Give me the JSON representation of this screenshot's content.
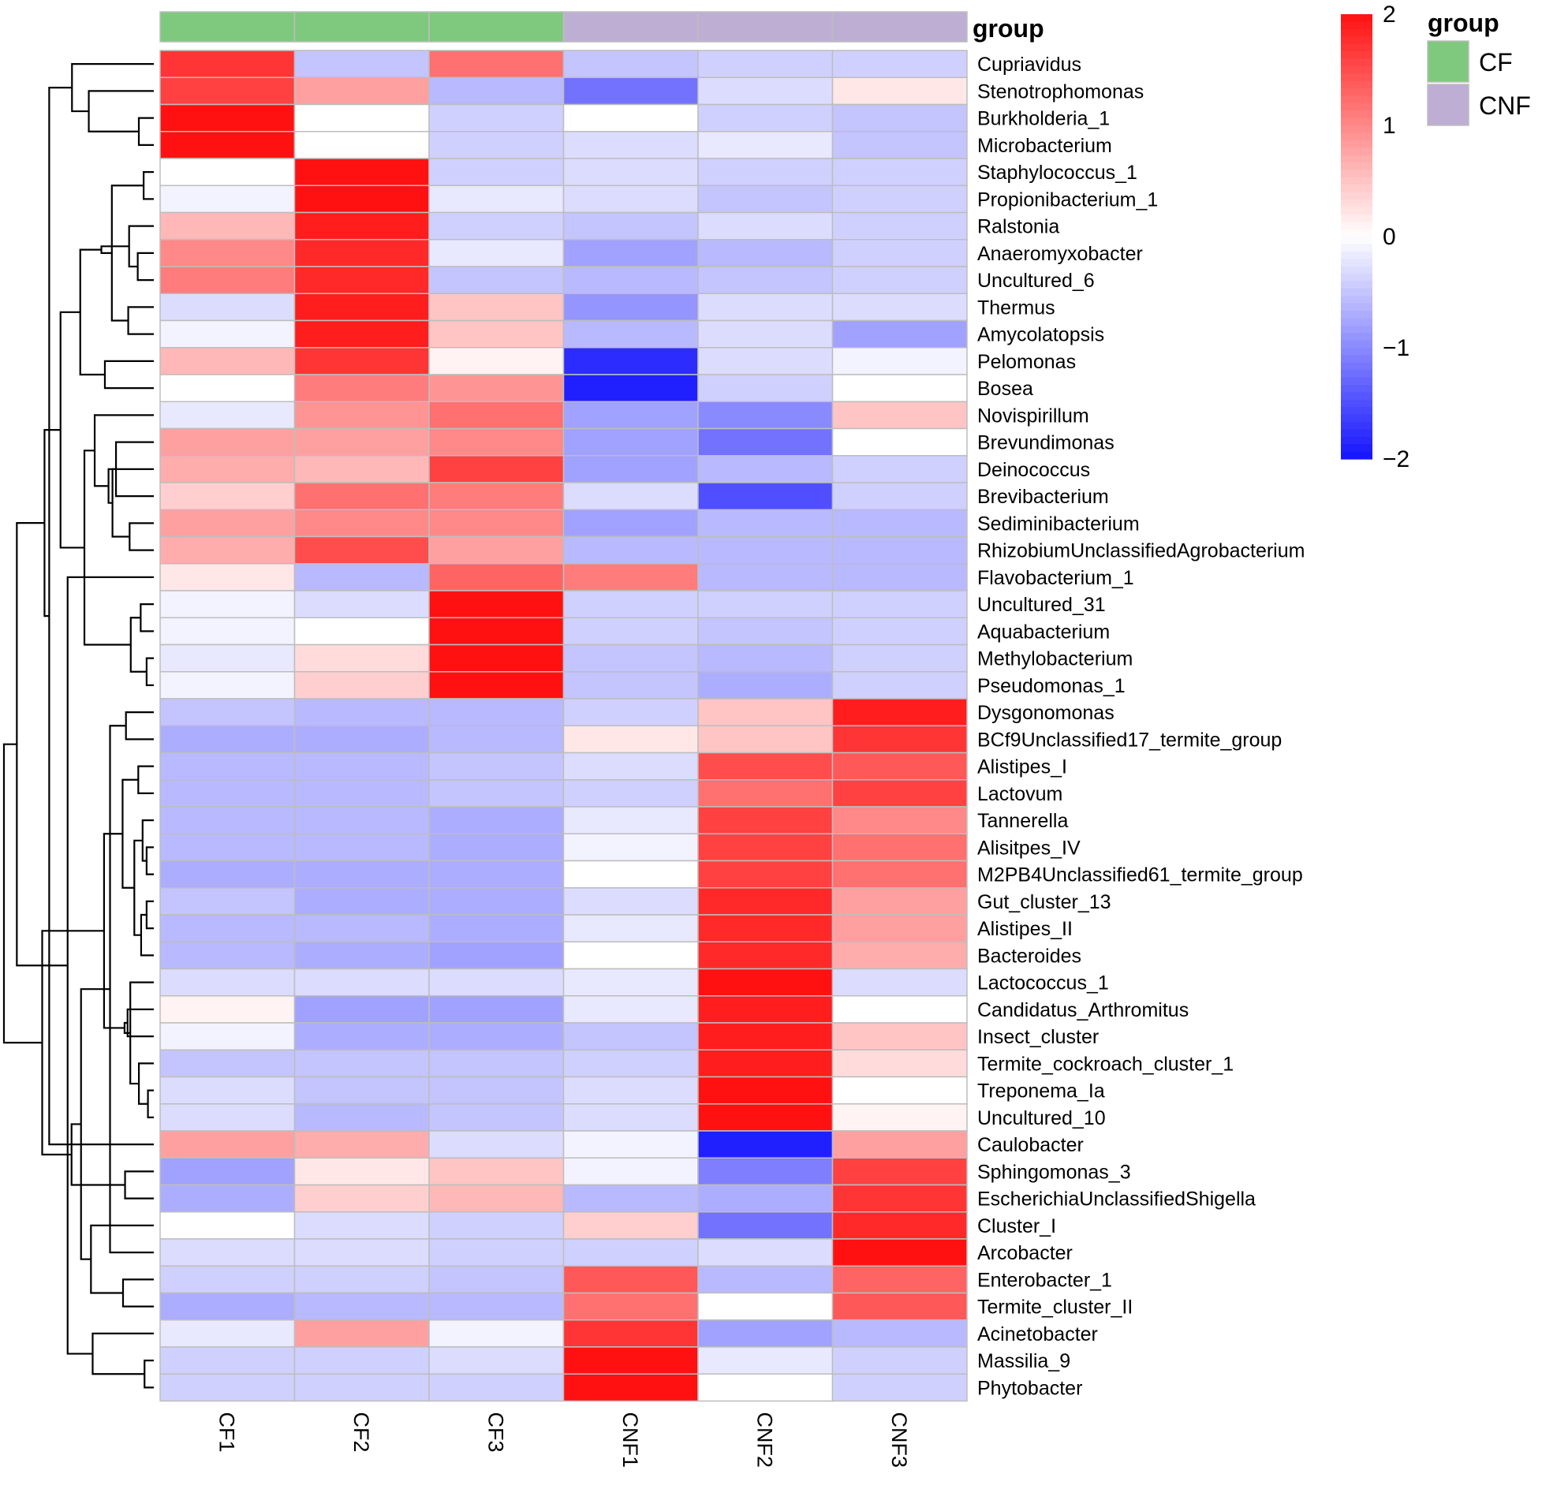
{
  "chart_data": {
    "type": "heatmap",
    "title": "",
    "columns": [
      "CF1",
      "CF2",
      "CF3",
      "CNF1",
      "CNF2",
      "CNF3"
    ],
    "column_groups": [
      "CF",
      "CF",
      "CF",
      "CNF",
      "CNF",
      "CNF"
    ],
    "rows": [
      "Cupriavidus",
      "Stenotrophomonas",
      "Burkholderia_1",
      "Microbacterium",
      "Staphylococcus_1",
      "Propionibacterium_1",
      "Ralstonia",
      "Anaeromyxobacter",
      "Uncultured_6",
      "Thermus",
      "Amycolatopsis",
      "Pelomonas",
      "Bosea",
      "Novispirillum",
      "Brevundimonas",
      "Deinococcus",
      "Brevibacterium",
      "Sediminibacterium",
      "RhizobiumUnclassifiedAgrobacterium",
      "Flavobacterium_1",
      "Uncultured_31",
      "Aquabacterium",
      "Methylobacterium",
      "Pseudomonas_1",
      "Dysgonomonas",
      "BCf9Unclassified17_termite_group",
      "Alistipes_I",
      "Lactovum",
      "Tannerella",
      "Alisitpes_IV",
      "M2PB4Unclassified61_termite_group",
      "Gut_cluster_13",
      "Alistipes_II",
      "Bacteroides",
      "Lactococcus_1",
      "Candidatus_Arthromitus",
      "Insect_cluster",
      "Termite_cockroach_cluster_1",
      "Treponema_Ia",
      "Uncultured_10",
      "Caulobacter",
      "Sphingomonas_3",
      "EscherichiaUnclassifiedShigella",
      "Cluster_I",
      "Arcobacter",
      "Enterobacter_1",
      "Termite_cluster_II",
      "Acinetobacter",
      "Massilia_9",
      "Phytobacter"
    ],
    "values": [
      [
        1.7,
        -0.5,
        1.2,
        -0.5,
        -0.4,
        -0.4
      ],
      [
        1.6,
        0.8,
        -0.6,
        -1.2,
        -0.3,
        0.2
      ],
      [
        2.0,
        0.0,
        -0.4,
        0.0,
        -0.4,
        -0.5
      ],
      [
        2.0,
        0.0,
        -0.4,
        -0.3,
        -0.2,
        -0.5
      ],
      [
        0.0,
        2.0,
        -0.4,
        -0.3,
        -0.4,
        -0.4
      ],
      [
        -0.1,
        2.0,
        -0.2,
        -0.3,
        -0.5,
        -0.4
      ],
      [
        0.6,
        1.9,
        -0.4,
        -0.5,
        -0.3,
        -0.4
      ],
      [
        1.0,
        1.8,
        -0.2,
        -0.8,
        -0.6,
        -0.4
      ],
      [
        1.1,
        1.8,
        -0.5,
        -0.6,
        -0.5,
        -0.4
      ],
      [
        -0.3,
        1.9,
        0.5,
        -0.9,
        -0.3,
        -0.3
      ],
      [
        -0.1,
        1.9,
        0.5,
        -0.6,
        -0.3,
        -0.8
      ],
      [
        0.6,
        1.7,
        0.1,
        -1.8,
        -0.3,
        -0.1
      ],
      [
        0.0,
        1.1,
        0.9,
        -1.9,
        -0.4,
        0.0
      ],
      [
        -0.2,
        0.9,
        1.2,
        -0.8,
        -1.0,
        0.5
      ],
      [
        0.8,
        0.8,
        1.0,
        -0.8,
        -1.2,
        0.0
      ],
      [
        0.7,
        0.6,
        1.6,
        -0.8,
        -0.6,
        -0.4
      ],
      [
        0.4,
        1.2,
        1.1,
        -0.3,
        -1.5,
        -0.4
      ],
      [
        0.8,
        1.0,
        1.0,
        -0.8,
        -0.6,
        -0.6
      ],
      [
        0.7,
        1.5,
        0.8,
        -0.6,
        -0.6,
        -0.6
      ],
      [
        0.2,
        -0.6,
        1.3,
        1.1,
        -0.6,
        -0.6
      ],
      [
        -0.1,
        -0.3,
        2.0,
        -0.4,
        -0.4,
        -0.4
      ],
      [
        -0.1,
        0.0,
        2.0,
        -0.4,
        -0.5,
        -0.4
      ],
      [
        -0.2,
        0.3,
        2.0,
        -0.5,
        -0.6,
        -0.4
      ],
      [
        -0.1,
        0.4,
        2.0,
        -0.5,
        -0.7,
        -0.4
      ],
      [
        -0.5,
        -0.6,
        -0.6,
        -0.4,
        0.5,
        1.9
      ],
      [
        -0.7,
        -0.7,
        -0.6,
        0.2,
        0.5,
        1.7
      ],
      [
        -0.6,
        -0.6,
        -0.5,
        -0.3,
        1.5,
        1.4
      ],
      [
        -0.6,
        -0.6,
        -0.5,
        -0.4,
        1.2,
        1.6
      ],
      [
        -0.6,
        -0.6,
        -0.7,
        -0.2,
        1.6,
        1.0
      ],
      [
        -0.6,
        -0.6,
        -0.7,
        -0.1,
        1.6,
        1.2
      ],
      [
        -0.7,
        -0.7,
        -0.7,
        0.0,
        1.6,
        1.2
      ],
      [
        -0.5,
        -0.7,
        -0.7,
        -0.3,
        1.8,
        0.8
      ],
      [
        -0.6,
        -0.6,
        -0.7,
        -0.2,
        1.8,
        0.8
      ],
      [
        -0.6,
        -0.7,
        -0.8,
        0.0,
        1.8,
        0.7
      ],
      [
        -0.3,
        -0.3,
        -0.3,
        -0.2,
        2.0,
        -0.3
      ],
      [
        0.1,
        -0.8,
        -0.8,
        -0.2,
        1.9,
        0.0
      ],
      [
        -0.1,
        -0.7,
        -0.7,
        -0.5,
        1.9,
        0.5
      ],
      [
        -0.5,
        -0.5,
        -0.5,
        -0.4,
        1.9,
        0.3
      ],
      [
        -0.3,
        -0.5,
        -0.5,
        -0.3,
        2.0,
        0.0
      ],
      [
        -0.3,
        -0.6,
        -0.5,
        -0.3,
        2.0,
        0.1
      ],
      [
        0.8,
        0.7,
        -0.3,
        -0.1,
        -1.9,
        0.8
      ],
      [
        -0.8,
        0.2,
        0.5,
        -0.1,
        -1.1,
        1.6
      ],
      [
        -0.7,
        0.4,
        0.6,
        -0.6,
        -0.7,
        1.7
      ],
      [
        0.0,
        -0.3,
        -0.4,
        0.4,
        -1.2,
        1.8
      ],
      [
        -0.3,
        -0.3,
        -0.4,
        -0.4,
        -0.3,
        2.0
      ],
      [
        -0.4,
        -0.4,
        -0.5,
        1.4,
        -0.6,
        1.3
      ],
      [
        -0.7,
        -0.6,
        -0.6,
        1.2,
        0.0,
        1.4
      ],
      [
        -0.2,
        0.8,
        -0.1,
        1.7,
        -0.8,
        -0.6
      ],
      [
        -0.4,
        -0.4,
        -0.3,
        2.0,
        -0.2,
        -0.4
      ],
      [
        -0.4,
        -0.4,
        -0.4,
        2.0,
        0.0,
        -0.4
      ]
    ],
    "color_scale": {
      "min": -2,
      "max": 2,
      "low": "#1414ff",
      "mid": "#ffffff",
      "high": "#ff1111"
    },
    "colorbar_ticks": [
      "2",
      "1",
      "0",
      "−1",
      "−2"
    ],
    "annotation": {
      "title": "group",
      "legend_title": "group",
      "legend": [
        {
          "label": "CF",
          "color": "#7fc97f"
        },
        {
          "label": "CNF",
          "color": "#beaed4"
        }
      ]
    },
    "dendrogram": "rows",
    "legend_placement": "right"
  },
  "colors": {
    "cell_border": "#bdbdbd",
    "dendrogram": "#000000"
  }
}
